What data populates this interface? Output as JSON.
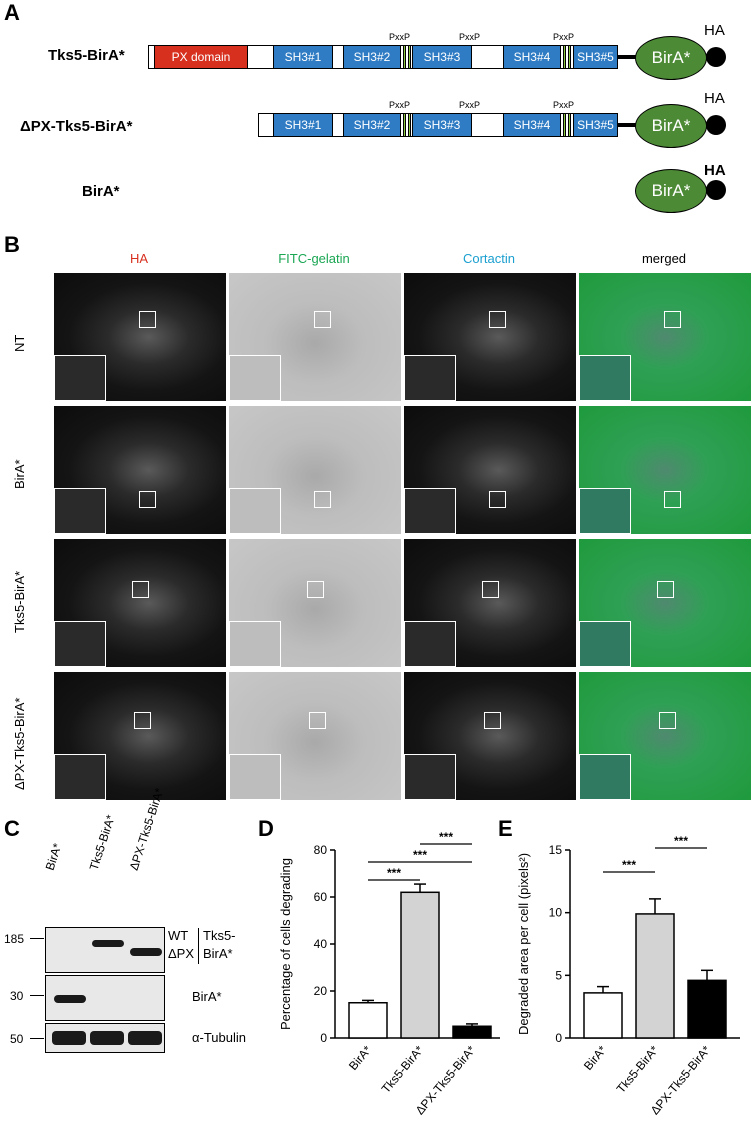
{
  "panels": {
    "a": "A",
    "b": "B",
    "c": "C",
    "d": "D",
    "e": "E"
  },
  "panelA": {
    "constructs": [
      {
        "label": "Tks5-BirA*"
      },
      {
        "label": "ΔPX-Tks5-BirA*"
      },
      {
        "label": "BirA*"
      }
    ],
    "px_domain": "PX domain",
    "sh3": [
      "SH3#1",
      "SH3#2",
      "SH3#3",
      "SH3#4",
      "SH3#5"
    ],
    "pxxp": "PxxP",
    "birA": "BirA*",
    "ha": "HA",
    "colors": {
      "px": "#d7301f",
      "sh3": "#2f7cc4",
      "pxxp": "#8dc63f",
      "birA": "#4d8a36"
    }
  },
  "panelB": {
    "columns": [
      {
        "label": "HA",
        "color": "#d7301f"
      },
      {
        "label": "FITC-gelatin",
        "color": "#1aa653"
      },
      {
        "label": "Cortactin",
        "color": "#1a9fd0"
      },
      {
        "label": "merged",
        "color": "#000000"
      }
    ],
    "rows": [
      "NT",
      "BirA*",
      "Tks5-BirA*",
      "ΔPX-Tks5-BirA*"
    ]
  },
  "panelC": {
    "lanes": [
      "BirA*",
      "Tks5-BirA*",
      "ΔPX-Tks5-BirA*"
    ],
    "markers": [
      "185",
      "30",
      "50"
    ],
    "labels": {
      "wt": "WT",
      "dpx": "ΔPX",
      "tks5": "Tks5-",
      "birA_fusion": "BirA*",
      "birA": "BirA*",
      "tubulin": "α-Tubulin"
    }
  },
  "chart_data": [
    {
      "type": "bar",
      "categories": [
        "BirA*",
        "Tks5-BirA*",
        "ΔPX-Tks5-BirA*"
      ],
      "values": [
        15,
        62,
        5
      ],
      "errors": [
        1,
        3.5,
        1
      ],
      "colors": [
        "#ffffff",
        "#d3d3d3",
        "#000000"
      ],
      "ylabel": "Percentage of cells degrading",
      "ylim": [
        0,
        80
      ],
      "yticks": [
        "0",
        "20",
        "40",
        "60",
        "80"
      ],
      "significance": [
        "***",
        "***",
        "***"
      ]
    },
    {
      "type": "bar",
      "categories": [
        "BirA*",
        "Tks5-BirA*",
        "ΔPX-Tks5-BirA*"
      ],
      "values": [
        3.6,
        9.9,
        4.6
      ],
      "errors": [
        0.5,
        1.2,
        0.8
      ],
      "colors": [
        "#ffffff",
        "#d3d3d3",
        "#000000"
      ],
      "ylabel": "Degraded area per cell (pixels²)",
      "ylim": [
        0,
        15
      ],
      "yticks": [
        "0",
        "5",
        "10",
        "15"
      ],
      "significance": [
        "***",
        "***"
      ]
    }
  ]
}
